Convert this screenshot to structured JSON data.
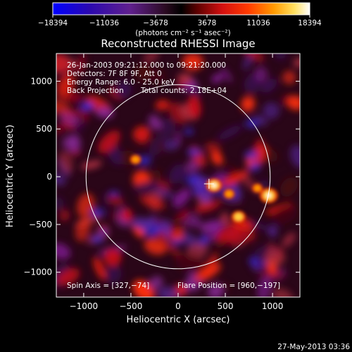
{
  "chart_data": {
    "type": "heatmap",
    "title": "Reconstructed RHESSI Image",
    "xlabel": "Heliocentric X (arcsec)",
    "ylabel": "Heliocentric Y (arcsec)",
    "xlim": [
      -1290,
      1290
    ],
    "ylim": [
      -1260,
      1290
    ],
    "xticks": [
      -1000,
      -500,
      0,
      500,
      1000
    ],
    "xtick_labels": [
      "−1000",
      "−500",
      "0",
      "500",
      "1000"
    ],
    "yticks": [
      -1000,
      -500,
      0,
      500,
      1000
    ],
    "ytick_labels": [
      "−1000",
      "−500",
      "0",
      "500",
      "1000"
    ],
    "colorbar": {
      "min": -18394,
      "max": 18394,
      "ticks": [
        -18394,
        -11036,
        -3678,
        3678,
        11036,
        18394
      ],
      "tick_labels": [
        "−18394",
        "−11036",
        "−3678",
        "3678",
        "11036",
        "18394"
      ],
      "unit_label": "(photons cm⁻² s⁻¹ asec⁻²)",
      "colors": [
        "#0000ff",
        "#3b0a8f",
        "#6b2aa0",
        "#000000",
        "#8b0000",
        "#ff2000",
        "#ffb000",
        "#ffffff"
      ]
    },
    "annotations": [
      "26-Jan-2003 09:21:12.000 to 09:21:20.000",
      "Detectors: 7F 8F 9F, Att 0",
      "Energy Range: 6.0 - 25.0 keV",
      "Back Projection",
      "Total counts: 2.18E+04"
    ],
    "spin_axis_label": "Spin Axis = [327,−74]",
    "flare_position_label": "Flare Position = [960,−197]",
    "spin_axis": [
      327,
      -74
    ],
    "flare_position": [
      960,
      -197
    ],
    "solar_limb_radius_arcsec": 975,
    "bright_sources": [
      {
        "x": 960,
        "y": -197,
        "peak": 18394
      },
      {
        "x": 380,
        "y": -90,
        "peak": 15500
      },
      {
        "x": 640,
        "y": -420,
        "peak": 13000
      },
      {
        "x": 840,
        "y": -120,
        "peak": 8000
      },
      {
        "x": -450,
        "y": 180,
        "peak": 9000
      },
      {
        "x": 540,
        "y": -180,
        "peak": 9000
      }
    ],
    "footer": "27-May-2013 03:36"
  }
}
